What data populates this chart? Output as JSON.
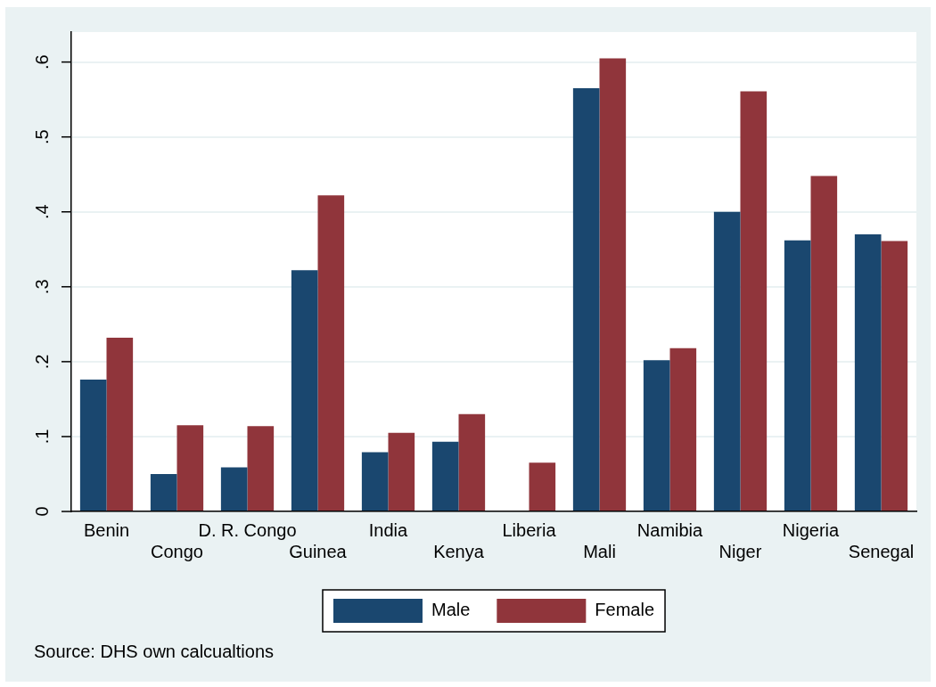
{
  "chart_data": {
    "type": "bar",
    "categories": [
      "Benin",
      "Congo",
      "D. R. Congo",
      "Guinea",
      "India",
      "Kenya",
      "Liberia",
      "Mali",
      "Namibia",
      "Niger",
      "Nigeria",
      "Senegal"
    ],
    "series": [
      {
        "name": "Male",
        "color": "#1a476f",
        "values": [
          0.176,
          0.05,
          0.059,
          0.322,
          0.079,
          0.093,
          null,
          0.565,
          0.202,
          0.4,
          0.362,
          0.37
        ]
      },
      {
        "name": "Female",
        "color": "#90353b",
        "values": [
          0.232,
          0.115,
          0.114,
          0.422,
          0.105,
          0.13,
          0.065,
          0.605,
          0.218,
          0.561,
          0.448,
          0.361
        ]
      }
    ],
    "ylim": [
      0,
      0.64
    ],
    "yticks": [
      0,
      {
        "value": 0.1,
        "label": ".1"
      },
      {
        "value": 0.2,
        "label": ".2"
      },
      {
        "value": 0.3,
        "label": ".3"
      },
      {
        "value": 0.4,
        "label": ".4"
      },
      {
        "value": 0.5,
        "label": ".5"
      },
      {
        "value": 0.6,
        "label": ".6"
      }
    ],
    "grid": "y",
    "legend": "bottom",
    "annotations": [
      "Source: DHS own calcualtions"
    ]
  }
}
